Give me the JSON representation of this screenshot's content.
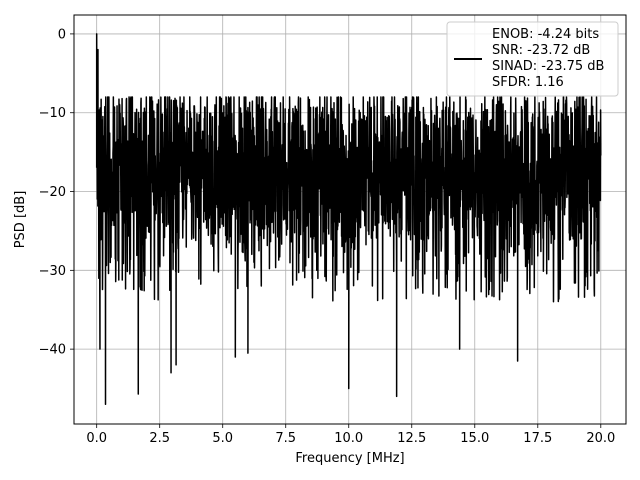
{
  "chart_data": {
    "type": "line",
    "title": "",
    "xlabel": "Frequency [MHz]",
    "ylabel": "PSD [dB]",
    "xlim": [
      -0.9,
      21.0
    ],
    "ylim": [
      -49.5,
      2.4
    ],
    "x_ticks": [
      0.0,
      2.5,
      5.0,
      7.5,
      10.0,
      12.5,
      15.0,
      17.5,
      20.0
    ],
    "x_tick_labels": [
      "0.0",
      "2.5",
      "5.0",
      "7.5",
      "10.0",
      "12.5",
      "15.0",
      "17.5",
      "20.0"
    ],
    "y_ticks": [
      0,
      -10,
      -20,
      -30,
      -40
    ],
    "y_tick_labels": [
      "0",
      "−10",
      "−20",
      "−30",
      "−40"
    ],
    "grid": true,
    "legend_position": "top-right",
    "series": [
      {
        "color": "#000000",
        "x_range": [
          0.0,
          20.0
        ],
        "band_mean_db": -18,
        "band_min_db": -30,
        "band_max_db": -8,
        "peaks": [
          {
            "x": 0.0,
            "y": 0.0
          },
          {
            "x": 0.05,
            "y": -2.0
          }
        ],
        "notches": [
          {
            "x": 0.13,
            "y": -40.0
          },
          {
            "x": 0.35,
            "y": -47.0
          },
          {
            "x": 1.65,
            "y": -45.7
          },
          {
            "x": 2.95,
            "y": -43.0
          },
          {
            "x": 3.15,
            "y": -42.0
          },
          {
            "x": 5.5,
            "y": -41.0
          },
          {
            "x": 6.0,
            "y": -40.5
          },
          {
            "x": 10.0,
            "y": -45.0
          },
          {
            "x": 11.9,
            "y": -46.0
          },
          {
            "x": 14.4,
            "y": -40.0
          },
          {
            "x": 16.7,
            "y": -41.5
          }
        ]
      }
    ],
    "legend": {
      "lines": [
        "ENOB: -4.24 bits",
        "SNR: -23.72 dB",
        "SINAD: -23.75 dB",
        "SFDR: 1.16"
      ]
    }
  }
}
